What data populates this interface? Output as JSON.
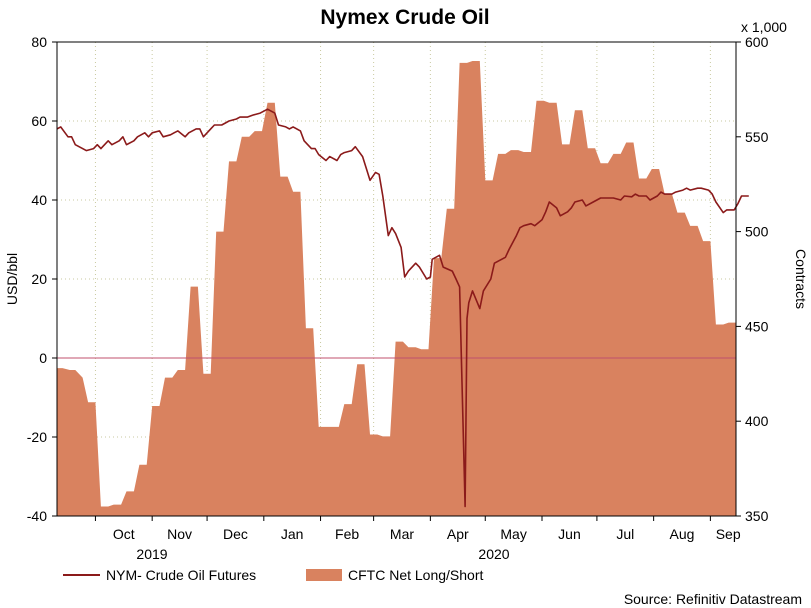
{
  "chart_data": {
    "type": "line+area",
    "title": "Nymex Crude Oil",
    "source": "Source: Refinitiv Datastream",
    "left_axis": {
      "label": "USD/bbl",
      "range": [
        -40,
        80
      ],
      "ticks": [
        "80",
        "60",
        "40",
        "20",
        "0",
        "-20",
        "-40"
      ]
    },
    "right_axis": {
      "label": "Contracts",
      "unit_note": "x 1,000",
      "range": [
        350,
        600
      ],
      "ticks": [
        "600",
        "550",
        "500",
        "450",
        "400",
        "350"
      ]
    },
    "x_axis": {
      "months": [
        "Oct",
        "Nov",
        "Dec",
        "Jan",
        "Feb",
        "Mar",
        "Apr",
        "May",
        "Jun",
        "Jul",
        "Aug",
        "Sep"
      ],
      "years": [
        "2019",
        "2020"
      ],
      "range": [
        "2019-09-10",
        "2020-09-15"
      ]
    },
    "grid": true,
    "legend_position": "bottom-left",
    "series": [
      {
        "name": "NYM- Crude Oil Futures",
        "kind": "line",
        "axis": "left",
        "color": "#8b1a1a",
        "points": [
          [
            "2019-09-10",
            58
          ],
          [
            "2019-09-12",
            58.5
          ],
          [
            "2019-09-16",
            56
          ],
          [
            "2019-09-18",
            56
          ],
          [
            "2019-09-20",
            54
          ],
          [
            "2019-09-24",
            53
          ],
          [
            "2019-09-26",
            52.5
          ],
          [
            "2019-09-30",
            53
          ],
          [
            "2019-10-02",
            54
          ],
          [
            "2019-10-04",
            53
          ],
          [
            "2019-10-08",
            55
          ],
          [
            "2019-10-10",
            54
          ],
          [
            "2019-10-14",
            55
          ],
          [
            "2019-10-16",
            56
          ],
          [
            "2019-10-18",
            54
          ],
          [
            "2019-10-22",
            55
          ],
          [
            "2019-10-24",
            56
          ],
          [
            "2019-10-28",
            57
          ],
          [
            "2019-10-30",
            56
          ],
          [
            "2019-11-01",
            57
          ],
          [
            "2019-11-05",
            57.5
          ],
          [
            "2019-11-07",
            56
          ],
          [
            "2019-11-11",
            56.5
          ],
          [
            "2019-11-13",
            57
          ],
          [
            "2019-11-15",
            57.5
          ],
          [
            "2019-11-19",
            56
          ],
          [
            "2019-11-21",
            57
          ],
          [
            "2019-11-25",
            58
          ],
          [
            "2019-11-27",
            58
          ],
          [
            "2019-11-29",
            56
          ],
          [
            "2019-12-03",
            58
          ],
          [
            "2019-12-05",
            59
          ],
          [
            "2019-12-09",
            59
          ],
          [
            "2019-12-11",
            59.5
          ],
          [
            "2019-12-13",
            60
          ],
          [
            "2019-12-17",
            60.5
          ],
          [
            "2019-12-19",
            61
          ],
          [
            "2019-12-23",
            61
          ],
          [
            "2019-12-26",
            61.5
          ],
          [
            "2019-12-30",
            62
          ],
          [
            "2020-01-03",
            63
          ],
          [
            "2020-01-07",
            62
          ],
          [
            "2020-01-09",
            59
          ],
          [
            "2020-01-13",
            58.5
          ],
          [
            "2020-01-15",
            58
          ],
          [
            "2020-01-17",
            58.5
          ],
          [
            "2020-01-21",
            57.5
          ],
          [
            "2020-01-23",
            55
          ],
          [
            "2020-01-27",
            53
          ],
          [
            "2020-01-29",
            53
          ],
          [
            "2020-01-31",
            51.5
          ],
          [
            "2020-02-04",
            50
          ],
          [
            "2020-02-06",
            51
          ],
          [
            "2020-02-10",
            50
          ],
          [
            "2020-02-12",
            51.5
          ],
          [
            "2020-02-14",
            52
          ],
          [
            "2020-02-18",
            52.5
          ],
          [
            "2020-02-20",
            53.5
          ],
          [
            "2020-02-24",
            51
          ],
          [
            "2020-02-26",
            48
          ],
          [
            "2020-02-28",
            45
          ],
          [
            "2020-03-02",
            47
          ],
          [
            "2020-03-04",
            46.5
          ],
          [
            "2020-03-06",
            41
          ],
          [
            "2020-03-09",
            31
          ],
          [
            "2020-03-11",
            33
          ],
          [
            "2020-03-13",
            31.5
          ],
          [
            "2020-03-16",
            28
          ],
          [
            "2020-03-18",
            20.5
          ],
          [
            "2020-03-20",
            22
          ],
          [
            "2020-03-24",
            24
          ],
          [
            "2020-03-26",
            23
          ],
          [
            "2020-03-30",
            20
          ],
          [
            "2020-04-01",
            20.5
          ],
          [
            "2020-04-02",
            25
          ],
          [
            "2020-04-06",
            26
          ],
          [
            "2020-04-08",
            23
          ],
          [
            "2020-04-13",
            22
          ],
          [
            "2020-04-15",
            20
          ],
          [
            "2020-04-17",
            18
          ],
          [
            "2020-04-20",
            -37.6
          ],
          [
            "2020-04-21",
            10
          ],
          [
            "2020-04-22",
            14
          ],
          [
            "2020-04-24",
            17
          ],
          [
            "2020-04-28",
            12.5
          ],
          [
            "2020-04-30",
            17
          ],
          [
            "2020-05-04",
            20
          ],
          [
            "2020-05-06",
            24
          ],
          [
            "2020-05-08",
            24.5
          ],
          [
            "2020-05-12",
            25.5
          ],
          [
            "2020-05-14",
            27.5
          ],
          [
            "2020-05-18",
            31
          ],
          [
            "2020-05-20",
            33
          ],
          [
            "2020-05-22",
            33.5
          ],
          [
            "2020-05-26",
            34
          ],
          [
            "2020-05-28",
            33.5
          ],
          [
            "2020-06-01",
            35
          ],
          [
            "2020-06-03",
            37
          ],
          [
            "2020-06-05",
            39.5
          ],
          [
            "2020-06-09",
            38
          ],
          [
            "2020-06-11",
            36
          ],
          [
            "2020-06-15",
            37
          ],
          [
            "2020-06-17",
            38
          ],
          [
            "2020-06-19",
            39.5
          ],
          [
            "2020-06-23",
            40
          ],
          [
            "2020-06-25",
            38.5
          ],
          [
            "2020-06-29",
            39.5
          ],
          [
            "2020-07-01",
            40
          ],
          [
            "2020-07-03",
            40.5
          ],
          [
            "2020-07-08",
            40.5
          ],
          [
            "2020-07-10",
            40.5
          ],
          [
            "2020-07-14",
            40
          ],
          [
            "2020-07-16",
            41
          ],
          [
            "2020-07-20",
            40.8
          ],
          [
            "2020-07-22",
            41.5
          ],
          [
            "2020-07-24",
            41
          ],
          [
            "2020-07-28",
            41
          ],
          [
            "2020-07-30",
            40
          ],
          [
            "2020-08-03",
            41
          ],
          [
            "2020-08-05",
            42
          ],
          [
            "2020-08-07",
            41.5
          ],
          [
            "2020-08-11",
            41.5
          ],
          [
            "2020-08-13",
            42
          ],
          [
            "2020-08-17",
            42.5
          ],
          [
            "2020-08-19",
            43
          ],
          [
            "2020-08-21",
            42.5
          ],
          [
            "2020-08-25",
            43
          ],
          [
            "2020-08-27",
            43
          ],
          [
            "2020-08-31",
            42.5
          ],
          [
            "2020-09-02",
            41.5
          ],
          [
            "2020-09-04",
            39.5
          ],
          [
            "2020-09-08",
            36.8
          ],
          [
            "2020-09-10",
            37.5
          ],
          [
            "2020-09-14",
            37.5
          ],
          [
            "2020-09-16",
            39
          ],
          [
            "2020-09-18",
            41
          ],
          [
            "2020-09-22",
            41
          ]
        ]
      },
      {
        "name": "CFTC Net Long/Short",
        "kind": "area",
        "axis": "right",
        "color": "#d9825f",
        "points": [
          [
            "2019-09-10",
            428
          ],
          [
            "2019-09-13",
            428
          ],
          [
            "2019-09-17",
            427
          ],
          [
            "2019-09-20",
            427
          ],
          [
            "2019-09-24",
            423
          ],
          [
            "2019-09-27",
            410
          ],
          [
            "2019-10-01",
            410
          ],
          [
            "2019-10-04",
            355
          ],
          [
            "2019-10-08",
            355
          ],
          [
            "2019-10-11",
            356
          ],
          [
            "2019-10-15",
            356
          ],
          [
            "2019-10-18",
            363
          ],
          [
            "2019-10-22",
            363
          ],
          [
            "2019-10-25",
            377
          ],
          [
            "2019-10-29",
            377
          ],
          [
            "2019-11-01",
            408
          ],
          [
            "2019-11-05",
            408
          ],
          [
            "2019-11-08",
            423
          ],
          [
            "2019-11-12",
            423
          ],
          [
            "2019-11-15",
            427
          ],
          [
            "2019-11-19",
            427
          ],
          [
            "2019-11-22",
            471
          ],
          [
            "2019-11-26",
            471
          ],
          [
            "2019-11-29",
            425
          ],
          [
            "2019-12-03",
            425
          ],
          [
            "2019-12-06",
            500
          ],
          [
            "2019-12-10",
            500
          ],
          [
            "2019-12-13",
            537
          ],
          [
            "2019-12-17",
            537
          ],
          [
            "2019-12-20",
            550
          ],
          [
            "2019-12-24",
            550
          ],
          [
            "2019-12-27",
            553
          ],
          [
            "2019-12-31",
            553
          ],
          [
            "2020-01-03",
            568
          ],
          [
            "2020-01-07",
            568
          ],
          [
            "2020-01-10",
            529
          ],
          [
            "2020-01-14",
            529
          ],
          [
            "2020-01-17",
            521
          ],
          [
            "2020-01-21",
            521
          ],
          [
            "2020-01-24",
            449
          ],
          [
            "2020-01-28",
            449
          ],
          [
            "2020-01-31",
            397
          ],
          [
            "2020-02-04",
            397
          ],
          [
            "2020-02-07",
            397
          ],
          [
            "2020-02-11",
            397
          ],
          [
            "2020-02-14",
            409
          ],
          [
            "2020-02-18",
            409
          ],
          [
            "2020-02-21",
            430
          ],
          [
            "2020-02-25",
            430
          ],
          [
            "2020-02-28",
            393
          ],
          [
            "2020-03-03",
            393
          ],
          [
            "2020-03-06",
            392
          ],
          [
            "2020-03-10",
            392
          ],
          [
            "2020-03-13",
            442
          ],
          [
            "2020-03-17",
            442
          ],
          [
            "2020-03-20",
            439
          ],
          [
            "2020-03-24",
            439
          ],
          [
            "2020-03-27",
            438
          ],
          [
            "2020-03-31",
            438
          ],
          [
            "2020-04-03",
            486
          ],
          [
            "2020-04-07",
            486
          ],
          [
            "2020-04-10",
            512
          ],
          [
            "2020-04-14",
            512
          ],
          [
            "2020-04-17",
            589
          ],
          [
            "2020-04-21",
            589
          ],
          [
            "2020-04-24",
            590
          ],
          [
            "2020-04-28",
            590
          ],
          [
            "2020-05-01",
            527
          ],
          [
            "2020-05-05",
            527
          ],
          [
            "2020-05-08",
            541
          ],
          [
            "2020-05-12",
            541
          ],
          [
            "2020-05-15",
            543
          ],
          [
            "2020-05-19",
            543
          ],
          [
            "2020-05-22",
            542
          ],
          [
            "2020-05-26",
            542
          ],
          [
            "2020-05-29",
            569
          ],
          [
            "2020-06-02",
            569
          ],
          [
            "2020-06-05",
            568
          ],
          [
            "2020-06-09",
            568
          ],
          [
            "2020-06-12",
            546
          ],
          [
            "2020-06-16",
            546
          ],
          [
            "2020-06-19",
            564
          ],
          [
            "2020-06-23",
            564
          ],
          [
            "2020-06-26",
            544
          ],
          [
            "2020-06-30",
            544
          ],
          [
            "2020-07-03",
            536
          ],
          [
            "2020-07-07",
            536
          ],
          [
            "2020-07-10",
            541
          ],
          [
            "2020-07-14",
            541
          ],
          [
            "2020-07-17",
            547
          ],
          [
            "2020-07-21",
            547
          ],
          [
            "2020-07-24",
            528
          ],
          [
            "2020-07-28",
            528
          ],
          [
            "2020-07-31",
            533
          ],
          [
            "2020-08-04",
            533
          ],
          [
            "2020-08-07",
            520
          ],
          [
            "2020-08-11",
            520
          ],
          [
            "2020-08-14",
            510
          ],
          [
            "2020-08-18",
            510
          ],
          [
            "2020-08-21",
            503
          ],
          [
            "2020-08-25",
            503
          ],
          [
            "2020-08-28",
            495
          ],
          [
            "2020-09-01",
            495
          ],
          [
            "2020-09-04",
            451
          ],
          [
            "2020-09-08",
            451
          ],
          [
            "2020-09-11",
            452
          ],
          [
            "2020-09-15",
            452
          ]
        ]
      }
    ]
  }
}
